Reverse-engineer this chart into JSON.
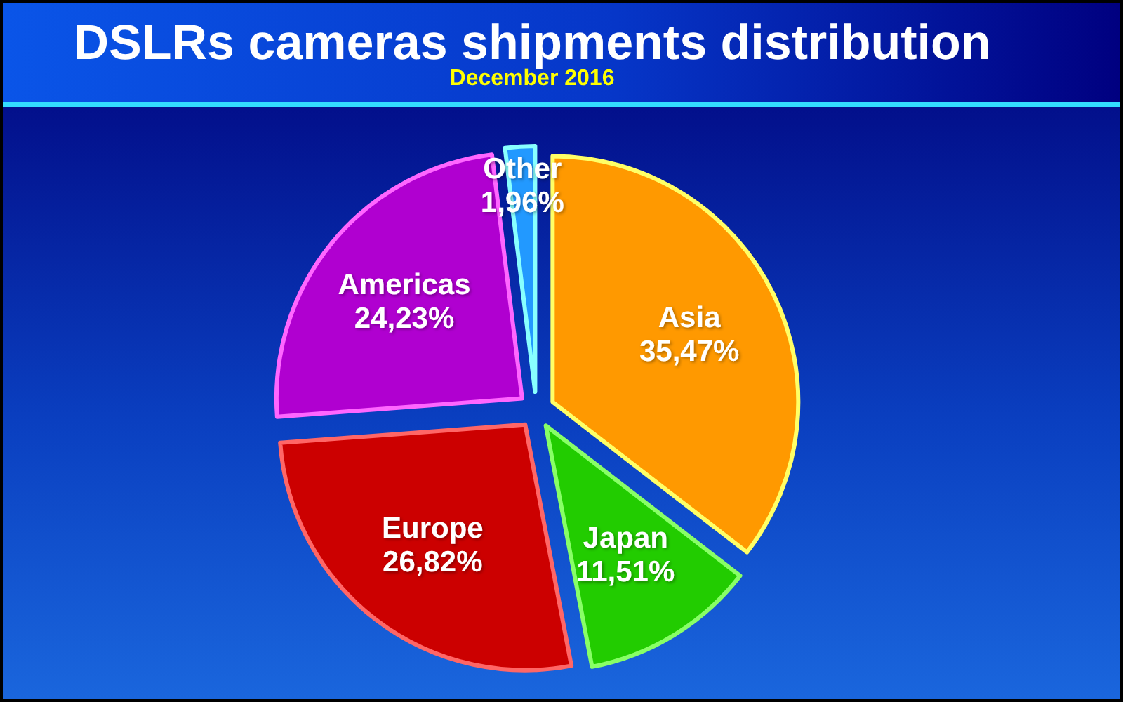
{
  "chart_data": {
    "type": "pie",
    "title": "DSLRs cameras shipments distribution",
    "subtitle": "December 2016",
    "categories": [
      "Asia",
      "Japan",
      "Europe",
      "Americas",
      "Other"
    ],
    "values": [
      35.47,
      11.51,
      26.82,
      24.23,
      1.96
    ],
    "colors": [
      "#ff9900",
      "#22cc00",
      "#cc0000",
      "#b000d0",
      "#2299ff"
    ],
    "value_labels": [
      "35,47%",
      "11,51%",
      "26,82%",
      "24,23%",
      "1,96%"
    ]
  }
}
